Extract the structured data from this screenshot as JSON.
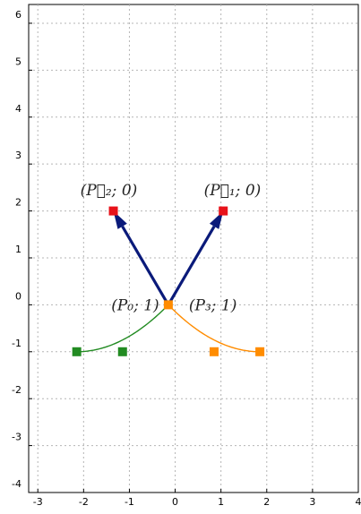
{
  "chart_data": {
    "type": "line",
    "xlim": [
      -3.2,
      4.0
    ],
    "ylim": [
      -4.0,
      6.4
    ],
    "grid": true,
    "x_ticks": [
      -3,
      -2,
      -1,
      0,
      1,
      2,
      3,
      4
    ],
    "y_ticks": [
      -4,
      -3,
      -2,
      -1,
      0,
      1,
      2,
      3,
      4,
      5,
      6
    ],
    "x_tick_labels": [
      "-3",
      "-2",
      "-1",
      "0",
      "1",
      "2",
      "3",
      "4"
    ],
    "y_tick_labels": [
      "-4",
      "-3",
      "-2",
      "-1",
      "0",
      "1",
      "2",
      "3",
      "4",
      "5",
      "6"
    ],
    "loop_curve": {
      "control_points": [
        [
          -0.15,
          0.0
        ],
        [
          1.05,
          2.0
        ],
        [
          -1.35,
          2.0
        ],
        [
          -0.15,
          0.0
        ]
      ],
      "weights": [
        1,
        0,
        0,
        1
      ],
      "color": "#000000"
    },
    "left_curve": {
      "control_points": [
        [
          -0.15,
          0.0
        ],
        [
          -1.15,
          -1.0
        ],
        [
          -2.15,
          -1.0
        ]
      ],
      "color": "#228b22"
    },
    "right_curve": {
      "control_points": [
        [
          -0.15,
          0.0
        ],
        [
          0.85,
          -1.0
        ],
        [
          1.85,
          -1.0
        ]
      ],
      "color": "#ff8c00"
    },
    "arrows": [
      {
        "from": [
          -0.15,
          0.0
        ],
        "to": [
          1.05,
          2.0
        ],
        "color": "#0a1a7a"
      },
      {
        "from": [
          -0.15,
          0.0
        ],
        "to": [
          -1.35,
          2.0
        ],
        "color": "#0a1a7a"
      }
    ],
    "points": [
      {
        "x": -0.15,
        "y": 0.0,
        "color": "#ff8c00"
      },
      {
        "x": 1.05,
        "y": 2.0,
        "color": "#e8121a"
      },
      {
        "x": -1.35,
        "y": 2.0,
        "color": "#e8121a"
      },
      {
        "x": -1.15,
        "y": -1.0,
        "color": "#228b22"
      },
      {
        "x": -2.15,
        "y": -1.0,
        "color": "#228b22"
      },
      {
        "x": 0.85,
        "y": -1.0,
        "color": "#ff8c00"
      },
      {
        "x": 1.85,
        "y": -1.0,
        "color": "#ff8c00"
      }
    ],
    "annotations": [
      {
        "text": "(P₀; 1)",
        "x": -0.35,
        "y": 0.0,
        "anchor": "end"
      },
      {
        "text": "(P₃; 1)",
        "x": 0.3,
        "y": 0.0,
        "anchor": "start"
      },
      {
        "text": "(P⃗₂; 0)",
        "x": -1.45,
        "y": 2.45,
        "anchor": "middle"
      },
      {
        "text": "(P⃗₁; 0)",
        "x": 1.25,
        "y": 2.45,
        "anchor": "middle"
      }
    ]
  }
}
